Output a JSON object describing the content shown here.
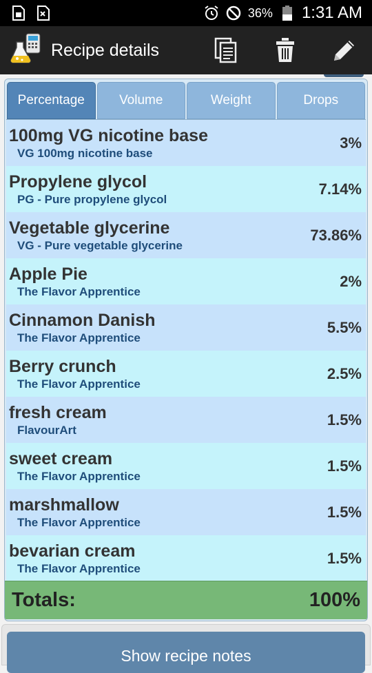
{
  "statusbar": {
    "battery": "36%",
    "time": "1:31 AM"
  },
  "appbar": {
    "title": "Recipe details"
  },
  "tabs": [
    {
      "label": "Percentage"
    },
    {
      "label": "Volume"
    },
    {
      "label": "Weight"
    },
    {
      "label": "Drops"
    }
  ],
  "ingredients": [
    {
      "name": "100mg VG nicotine base",
      "sub": "VG 100mg nicotine base",
      "pct": "3%"
    },
    {
      "name": "Propylene glycol",
      "sub": "PG - Pure propylene glycol",
      "pct": "7.14%"
    },
    {
      "name": "Vegetable glycerine",
      "sub": "VG - Pure vegetable glycerine",
      "pct": "73.86%"
    },
    {
      "name": "Apple Pie",
      "sub": "The Flavor Apprentice",
      "pct": "2%"
    },
    {
      "name": "Cinnamon Danish",
      "sub": "The Flavor Apprentice",
      "pct": "5.5%"
    },
    {
      "name": "Berry crunch",
      "sub": "The Flavor Apprentice",
      "pct": "2.5%"
    },
    {
      "name": "fresh cream",
      "sub": "FlavourArt",
      "pct": "1.5%"
    },
    {
      "name": "sweet cream",
      "sub": "The Flavor Apprentice",
      "pct": "1.5%"
    },
    {
      "name": "marshmallow",
      "sub": "The Flavor Apprentice",
      "pct": "1.5%"
    },
    {
      "name": "bevarian cream",
      "sub": "The Flavor Apprentice",
      "pct": "1.5%"
    }
  ],
  "totals": {
    "label": "Totals:",
    "value": "100%"
  },
  "notes_button": "Show recipe notes"
}
